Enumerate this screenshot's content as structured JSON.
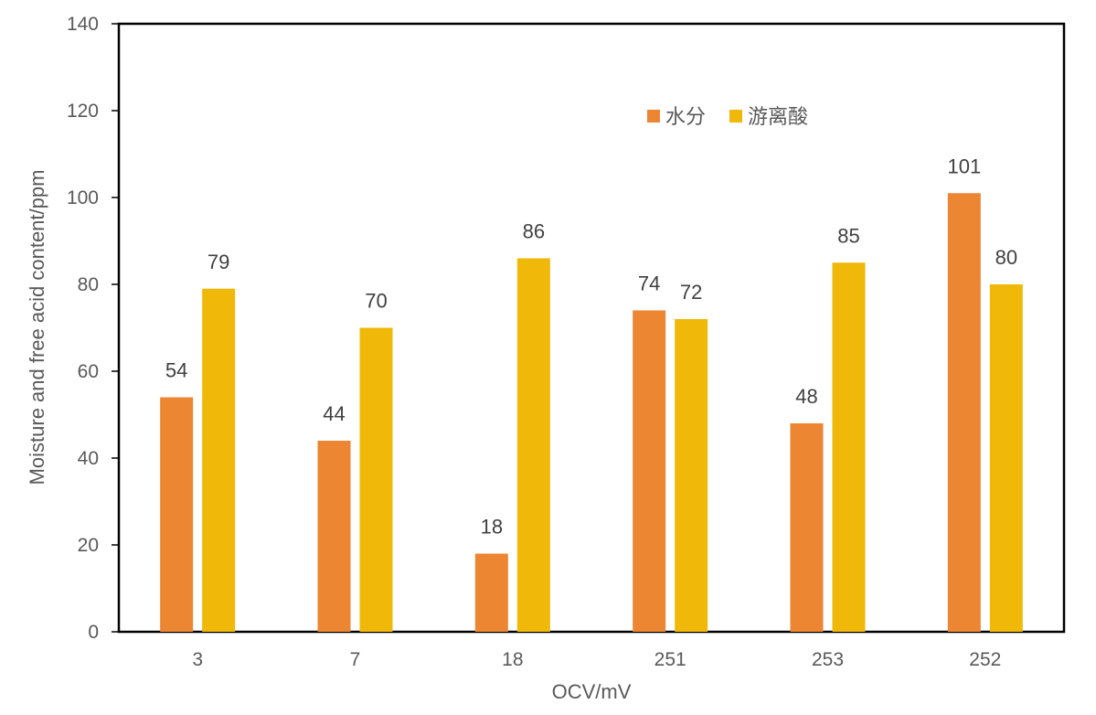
{
  "chart_data": {
    "type": "bar",
    "title": "",
    "xlabel": "OCV/mV",
    "ylabel": "Moisture and free acid content/ppm",
    "categories": [
      "3",
      "7",
      "18",
      "251",
      "253",
      "252"
    ],
    "ylim": [
      0,
      140
    ],
    "yticks": [
      "0",
      "20",
      "40",
      "60",
      "80",
      "100",
      "120",
      "140"
    ],
    "grid": false,
    "legend_position": "top-right",
    "series": [
      {
        "name": "水分",
        "values": [
          54,
          44,
          18,
          74,
          48,
          101
        ],
        "color": "#ED8633"
      },
      {
        "name": "游离酸",
        "values": [
          79,
          70,
          86,
          72,
          85,
          80
        ],
        "color": "#F0B808"
      }
    ]
  }
}
